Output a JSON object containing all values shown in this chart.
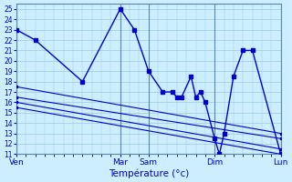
{
  "xlabel": "Température (°c)",
  "background_color": "#cceeff",
  "grid_color": "#99ccdd",
  "line_color": "#0000cc",
  "ylim": [
    11,
    25.5
  ],
  "yticks": [
    11,
    12,
    13,
    14,
    15,
    16,
    17,
    18,
    19,
    20,
    21,
    22,
    23,
    24,
    25
  ],
  "xlim": [
    0,
    56
  ],
  "x_tick_positions": [
    0,
    22,
    28,
    42,
    56
  ],
  "x_tick_labels": [
    "Ven",
    "Mar",
    "Sam",
    "Dim",
    "Lun"
  ],
  "main_x": [
    0,
    4,
    14,
    22,
    25,
    28,
    31,
    33,
    34,
    35,
    37,
    38,
    39,
    40,
    42,
    43,
    44,
    46,
    48,
    50,
    56
  ],
  "main_y": [
    23,
    22,
    18,
    25,
    23,
    19,
    17,
    17,
    16.5,
    16.5,
    18.5,
    16.5,
    17,
    16,
    12.5,
    11,
    13,
    18.5,
    21,
    21,
    11
  ],
  "trend_lines": [
    {
      "x": [
        0,
        56
      ],
      "y": [
        17.5,
        13.0
      ]
    },
    {
      "x": [
        0,
        56
      ],
      "y": [
        16.5,
        12.5
      ]
    },
    {
      "x": [
        0,
        56
      ],
      "y": [
        16.0,
        11.5
      ]
    },
    {
      "x": [
        0,
        56
      ],
      "y": [
        15.5,
        11.0
      ]
    }
  ]
}
